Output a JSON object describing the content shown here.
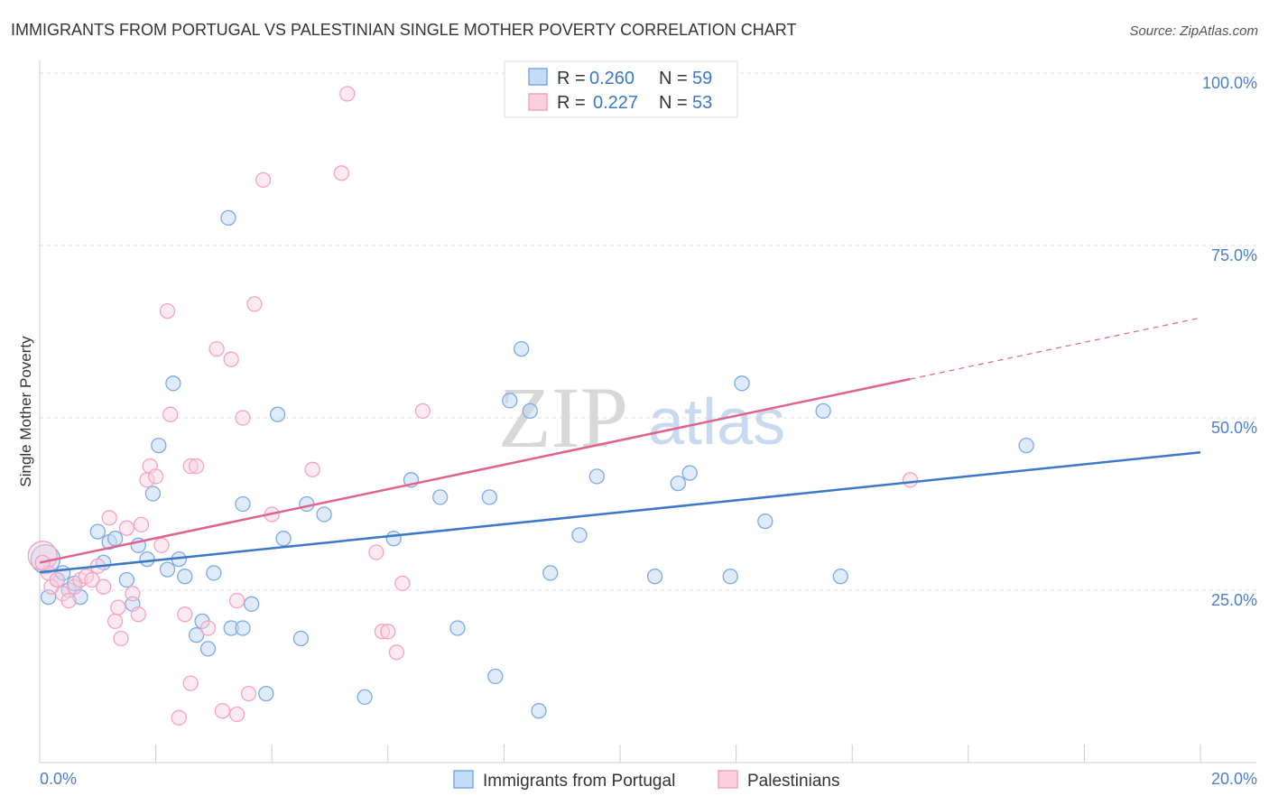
{
  "chart_data": {
    "type": "scatter",
    "title": "IMMIGRANTS FROM PORTUGAL VS PALESTINIAN SINGLE MOTHER POVERTY CORRELATION CHART",
    "source": "Source: ZipAtlas.com",
    "xlabel": "",
    "ylabel": "Single Mother Poverty",
    "xlim": [
      0,
      20
    ],
    "ylim": [
      0,
      105
    ],
    "x_tick_labels": [
      "0.0%",
      "20.0%"
    ],
    "y_ticks": [
      25,
      50,
      75,
      100
    ],
    "y_tick_labels": [
      "25.0%",
      "50.0%",
      "75.0%",
      "100.0%"
    ],
    "grid": true,
    "watermark": {
      "zip": "ZIP",
      "atlas": "atlas"
    },
    "legend_top": [
      {
        "r_label": "R = ",
        "r_value": "0.260",
        "n_label": "N = ",
        "n_value": "59"
      },
      {
        "r_label": "R = ",
        "r_value": "0.227",
        "n_label": "N = ",
        "n_value": "53"
      }
    ],
    "series": [
      {
        "name": "Immigrants from Portugal",
        "color": "#7aaae8",
        "line_color": "#3b78c8",
        "trend": {
          "x": [
            0,
            20
          ],
          "y": [
            27.6,
            45.0
          ],
          "dashed_from": null
        },
        "points": [
          [
            0.1,
            29.5
          ],
          [
            0.15,
            24.0
          ],
          [
            0.3,
            26.5
          ],
          [
            0.4,
            27.5
          ],
          [
            0.5,
            25.0
          ],
          [
            0.6,
            26.0
          ],
          [
            0.7,
            24.0
          ],
          [
            1.0,
            33.5
          ],
          [
            1.1,
            29.0
          ],
          [
            1.2,
            32.0
          ],
          [
            1.3,
            32.5
          ],
          [
            1.5,
            26.5
          ],
          [
            1.6,
            23.0
          ],
          [
            1.7,
            31.5
          ],
          [
            1.85,
            29.5
          ],
          [
            1.95,
            39.0
          ],
          [
            2.05,
            46.0
          ],
          [
            2.2,
            28.0
          ],
          [
            2.3,
            55.0
          ],
          [
            2.4,
            29.5
          ],
          [
            2.5,
            27.0
          ],
          [
            2.7,
            18.5
          ],
          [
            2.8,
            20.5
          ],
          [
            2.9,
            16.5
          ],
          [
            3.0,
            27.5
          ],
          [
            3.25,
            79.0
          ],
          [
            3.3,
            19.5
          ],
          [
            3.5,
            19.5
          ],
          [
            3.65,
            23.0
          ],
          [
            3.5,
            37.5
          ],
          [
            3.9,
            10.0
          ],
          [
            4.1,
            50.5
          ],
          [
            4.2,
            32.5
          ],
          [
            4.5,
            18.0
          ],
          [
            4.6,
            37.5
          ],
          [
            4.9,
            36.0
          ],
          [
            5.6,
            9.5
          ],
          [
            6.1,
            32.5
          ],
          [
            6.4,
            41.0
          ],
          [
            6.9,
            38.5
          ],
          [
            7.2,
            19.5
          ],
          [
            7.75,
            38.5
          ],
          [
            7.85,
            12.5
          ],
          [
            8.1,
            52.5
          ],
          [
            8.3,
            60.0
          ],
          [
            8.45,
            51.0
          ],
          [
            8.6,
            7.5
          ],
          [
            8.8,
            27.5
          ],
          [
            9.3,
            33.0
          ],
          [
            9.6,
            41.5
          ],
          [
            10.6,
            27.0
          ],
          [
            11.0,
            40.5
          ],
          [
            11.2,
            42.0
          ],
          [
            11.9,
            27.0
          ],
          [
            12.1,
            55.0
          ],
          [
            12.5,
            35.0
          ],
          [
            13.5,
            51.0
          ],
          [
            13.8,
            27.0
          ],
          [
            17.0,
            46.0
          ]
        ]
      },
      {
        "name": "Palestinians",
        "color": "#f4a3bf",
        "line_color": "#e0628f",
        "trend": {
          "x": [
            0,
            20
          ],
          "y": [
            29.0,
            64.5
          ],
          "dashed_from": 15.0
        },
        "points": [
          [
            0.05,
            30.0
          ],
          [
            0.15,
            27.5
          ],
          [
            0.2,
            25.5
          ],
          [
            0.3,
            26.5
          ],
          [
            0.4,
            24.5
          ],
          [
            0.5,
            23.5
          ],
          [
            0.6,
            25.5
          ],
          [
            0.7,
            26.5
          ],
          [
            0.8,
            27.0
          ],
          [
            0.9,
            26.5
          ],
          [
            1.0,
            28.5
          ],
          [
            1.1,
            25.5
          ],
          [
            1.2,
            35.5
          ],
          [
            1.3,
            20.5
          ],
          [
            1.35,
            22.5
          ],
          [
            1.4,
            18.0
          ],
          [
            1.5,
            34.0
          ],
          [
            1.6,
            24.5
          ],
          [
            1.7,
            21.5
          ],
          [
            1.75,
            34.5
          ],
          [
            1.85,
            41.0
          ],
          [
            1.9,
            43.0
          ],
          [
            2.0,
            41.5
          ],
          [
            2.1,
            31.5
          ],
          [
            2.2,
            65.5
          ],
          [
            2.25,
            50.5
          ],
          [
            2.4,
            6.5
          ],
          [
            2.5,
            21.5
          ],
          [
            2.6,
            11.5
          ],
          [
            2.6,
            43.0
          ],
          [
            2.7,
            43.0
          ],
          [
            2.9,
            19.5
          ],
          [
            3.05,
            60.0
          ],
          [
            3.3,
            58.5
          ],
          [
            3.15,
            7.5
          ],
          [
            3.4,
            7.0
          ],
          [
            3.4,
            23.5
          ],
          [
            3.5,
            50.0
          ],
          [
            3.6,
            10.0
          ],
          [
            3.7,
            66.5
          ],
          [
            3.85,
            84.5
          ],
          [
            4.0,
            36.0
          ],
          [
            4.7,
            42.5
          ],
          [
            5.2,
            85.5
          ],
          [
            5.3,
            97.0
          ],
          [
            5.8,
            30.5
          ],
          [
            5.9,
            19.0
          ],
          [
            6.0,
            19.0
          ],
          [
            6.15,
            16.0
          ],
          [
            6.25,
            26.0
          ],
          [
            6.6,
            51.0
          ],
          [
            15.0,
            41.0
          ],
          [
            0.05,
            29.0
          ]
        ]
      }
    ]
  }
}
